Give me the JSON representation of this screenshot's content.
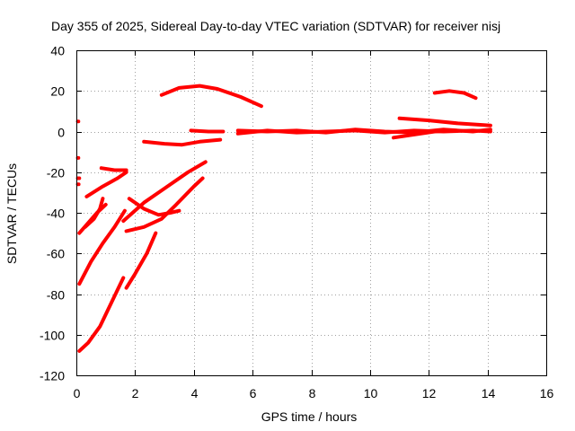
{
  "chart_data": {
    "type": "line",
    "title": "Day 355 of 2025, Sidereal Day-to-day VTEC variation (SDTVAR) for receiver nisj",
    "xlabel": "GPS time / hours",
    "ylabel": "SDTVAR / TECUs",
    "xlim": [
      0,
      16
    ],
    "ylim": [
      -120,
      40
    ],
    "xticks": [
      0,
      2,
      4,
      6,
      8,
      10,
      12,
      14,
      16
    ],
    "yticks": [
      -120,
      -100,
      -80,
      -60,
      -40,
      -20,
      0,
      20,
      40
    ],
    "grid": true,
    "color": "#ff0000",
    "series": [
      {
        "points": [
          [
            0.05,
            5
          ],
          [
            0.07,
            5
          ]
        ]
      },
      {
        "points": [
          [
            0.05,
            -13
          ],
          [
            0.07,
            -13
          ]
        ]
      },
      {
        "points": [
          [
            0.05,
            -23
          ],
          [
            0.1,
            -23
          ]
        ]
      },
      {
        "points": [
          [
            0.05,
            -26
          ],
          [
            0.08,
            -26
          ]
        ]
      },
      {
        "points": [
          [
            0.1,
            -108
          ],
          [
            0.4,
            -104
          ],
          [
            0.8,
            -96
          ],
          [
            1.2,
            -84
          ],
          [
            1.6,
            -72
          ]
        ]
      },
      {
        "points": [
          [
            1.7,
            -77
          ],
          [
            2.0,
            -70
          ],
          [
            2.4,
            -60
          ],
          [
            2.7,
            -50
          ]
        ]
      },
      {
        "points": [
          [
            0.1,
            -75
          ],
          [
            0.5,
            -64
          ],
          [
            0.9,
            -55
          ],
          [
            1.3,
            -47
          ],
          [
            1.65,
            -39
          ]
        ]
      },
      {
        "points": [
          [
            0.1,
            -50
          ],
          [
            0.4,
            -45
          ],
          [
            0.7,
            -40
          ],
          [
            1.0,
            -36
          ]
        ]
      },
      {
        "points": [
          [
            0.3,
            -47
          ],
          [
            0.6,
            -43
          ],
          [
            0.8,
            -38
          ],
          [
            0.9,
            -33
          ]
        ]
      },
      {
        "points": [
          [
            0.35,
            -32
          ],
          [
            0.9,
            -27
          ],
          [
            1.4,
            -23
          ],
          [
            1.7,
            -20
          ]
        ]
      },
      {
        "points": [
          [
            0.85,
            -18
          ],
          [
            1.3,
            -19
          ],
          [
            1.7,
            -19
          ]
        ]
      },
      {
        "points": [
          [
            1.7,
            -49
          ],
          [
            2.3,
            -47
          ],
          [
            2.9,
            -43
          ],
          [
            3.4,
            -36
          ],
          [
            4.0,
            -27
          ],
          [
            4.3,
            -23
          ]
        ]
      },
      {
        "points": [
          [
            1.6,
            -44
          ],
          [
            2.3,
            -35
          ],
          [
            3.0,
            -28
          ],
          [
            3.8,
            -20
          ],
          [
            4.4,
            -15
          ]
        ]
      },
      {
        "points": [
          [
            1.8,
            -33
          ],
          [
            2.3,
            -38
          ],
          [
            2.8,
            -41
          ],
          [
            3.2,
            -40
          ],
          [
            3.5,
            -39
          ]
        ]
      },
      {
        "points": [
          [
            2.3,
            -5
          ],
          [
            3.0,
            -6
          ],
          [
            3.6,
            -6.5
          ],
          [
            4.2,
            -5
          ],
          [
            4.9,
            -4
          ]
        ]
      },
      {
        "points": [
          [
            2.9,
            18
          ],
          [
            3.5,
            21.5
          ],
          [
            4.2,
            22.5
          ],
          [
            4.8,
            21
          ],
          [
            5.6,
            17
          ],
          [
            6.3,
            12.5
          ]
        ]
      },
      {
        "points": [
          [
            3.9,
            0.5
          ],
          [
            4.5,
            0
          ],
          [
            5.0,
            0
          ]
        ]
      },
      {
        "points": [
          [
            5.5,
            -1
          ],
          [
            6.5,
            0.5
          ],
          [
            7.5,
            -0.5
          ],
          [
            8.5,
            0
          ],
          [
            9.5,
            0.5
          ],
          [
            10.5,
            -0.5
          ],
          [
            11.5,
            0.5
          ],
          [
            12.5,
            0
          ],
          [
            13.5,
            0.5
          ],
          [
            14.1,
            0
          ]
        ]
      },
      {
        "points": [
          [
            5.5,
            0.5
          ],
          [
            6.5,
            0
          ],
          [
            7.5,
            0.5
          ],
          [
            8.5,
            -0.5
          ],
          [
            9.5,
            1
          ],
          [
            10.5,
            0
          ],
          [
            11.5,
            -0.5
          ],
          [
            12.5,
            1
          ],
          [
            13.5,
            0
          ],
          [
            14.1,
            1
          ]
        ]
      },
      {
        "points": [
          [
            10.8,
            -3
          ],
          [
            11.5,
            -1.5
          ],
          [
            12.2,
            0
          ],
          [
            12.8,
            0.5
          ]
        ]
      },
      {
        "points": [
          [
            11.0,
            6.5
          ],
          [
            12.0,
            5.5
          ],
          [
            13.0,
            4
          ],
          [
            14.1,
            3
          ]
        ]
      },
      {
        "points": [
          [
            12.2,
            19
          ],
          [
            12.7,
            20
          ],
          [
            13.2,
            19
          ],
          [
            13.6,
            16.5
          ]
        ]
      }
    ]
  }
}
